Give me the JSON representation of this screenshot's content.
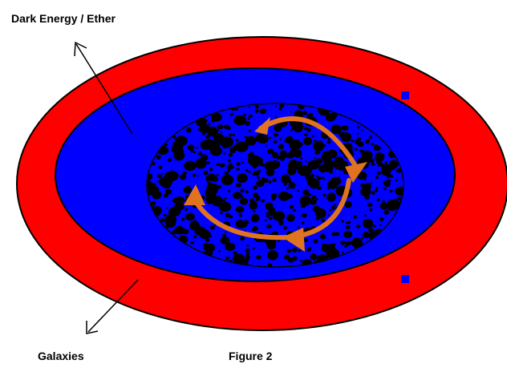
{
  "labels": {
    "top": "Dark Energy / Ether",
    "bottom_left": "Galaxies",
    "caption": "Figure 2"
  },
  "colors": {
    "outer_ring": "#ff0000",
    "inner_field": "#0000ff",
    "core_dots": "#000000",
    "rotation_arrows": "#e0731f",
    "outline": "#000000"
  },
  "icons": {
    "rotation": "circular-rotation-arrows"
  }
}
